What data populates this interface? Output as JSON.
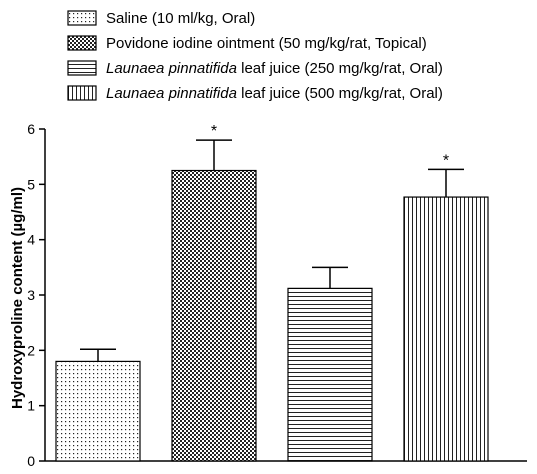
{
  "chart_data": {
    "type": "bar",
    "ylabel": "Hydroxyproline content (µg/ml)",
    "ylim": [
      0,
      6
    ],
    "yticks": [
      "0",
      "1",
      "2",
      "3",
      "4",
      "5",
      "6"
    ],
    "grid": false,
    "legend_position": "top",
    "categories": [
      "Saline (10 ml/kg, Oral)",
      "Povidone iodine ointment (50 mg/kg/rat, Topical)",
      "Launaea pinnatifida leaf juice (250 mg/kg/rat, Oral)",
      "Launaea pinnatifida leaf juice (500 mg/kg/rat, Oral)"
    ],
    "values": [
      1.8,
      5.25,
      3.12,
      4.77
    ],
    "errors": [
      0.22,
      0.55,
      0.38,
      0.5
    ],
    "significance": [
      "",
      "*",
      "",
      "*"
    ],
    "patterns": [
      "dots",
      "checker",
      "horizontal-lines",
      "vertical-lines"
    ],
    "legend": [
      {
        "italic": "",
        "text": "Saline (10 ml/kg, Oral)"
      },
      {
        "italic": "",
        "text": "Povidone iodine ointment (50 mg/kg/rat, Topical)"
      },
      {
        "italic": "Launaea pinnatifida",
        "text": " leaf juice (250 mg/kg/rat, Oral)"
      },
      {
        "italic": "Launaea pinnatifida",
        "text": " leaf juice (500 mg/kg/rat, Oral)"
      }
    ]
  }
}
